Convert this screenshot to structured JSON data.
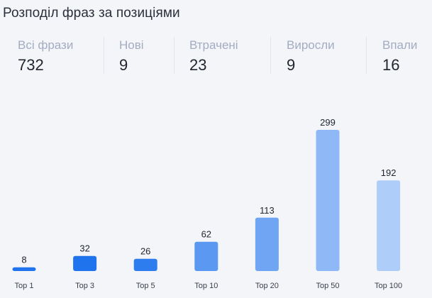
{
  "header": {
    "title": "Розподіл фраз за позиціями"
  },
  "stats": [
    {
      "label": "Всі фрази",
      "value": "732"
    },
    {
      "label": "Нові",
      "value": "9"
    },
    {
      "label": "Втрачені",
      "value": "23"
    },
    {
      "label": "Виросли",
      "value": "9"
    },
    {
      "label": "Впали",
      "value": "16"
    }
  ],
  "colors": {
    "bar_dark": "#1f73ec",
    "bar_mid": "#4f92f1",
    "bar_light": "#8fb9f6",
    "bar_lightest": "#aecdf8"
  },
  "chart_data": {
    "type": "bar",
    "categories": [
      "Top 1",
      "Top 3",
      "Top 5",
      "Top 10",
      "Top 20",
      "Top 50",
      "Top 100"
    ],
    "values": [
      8,
      32,
      26,
      62,
      113,
      299,
      192
    ],
    "value_labels": [
      "8",
      "32",
      "26",
      "62",
      "113",
      "299",
      "192"
    ],
    "bar_colors": [
      "#1f73ec",
      "#1f73ec",
      "#2e7def",
      "#5b98f1",
      "#6fa5f3",
      "#8fb9f6",
      "#aecdf8"
    ],
    "title": "",
    "xlabel": "",
    "ylabel": "",
    "ylim": [
      0,
      299
    ],
    "grid": false,
    "legend": "none"
  }
}
